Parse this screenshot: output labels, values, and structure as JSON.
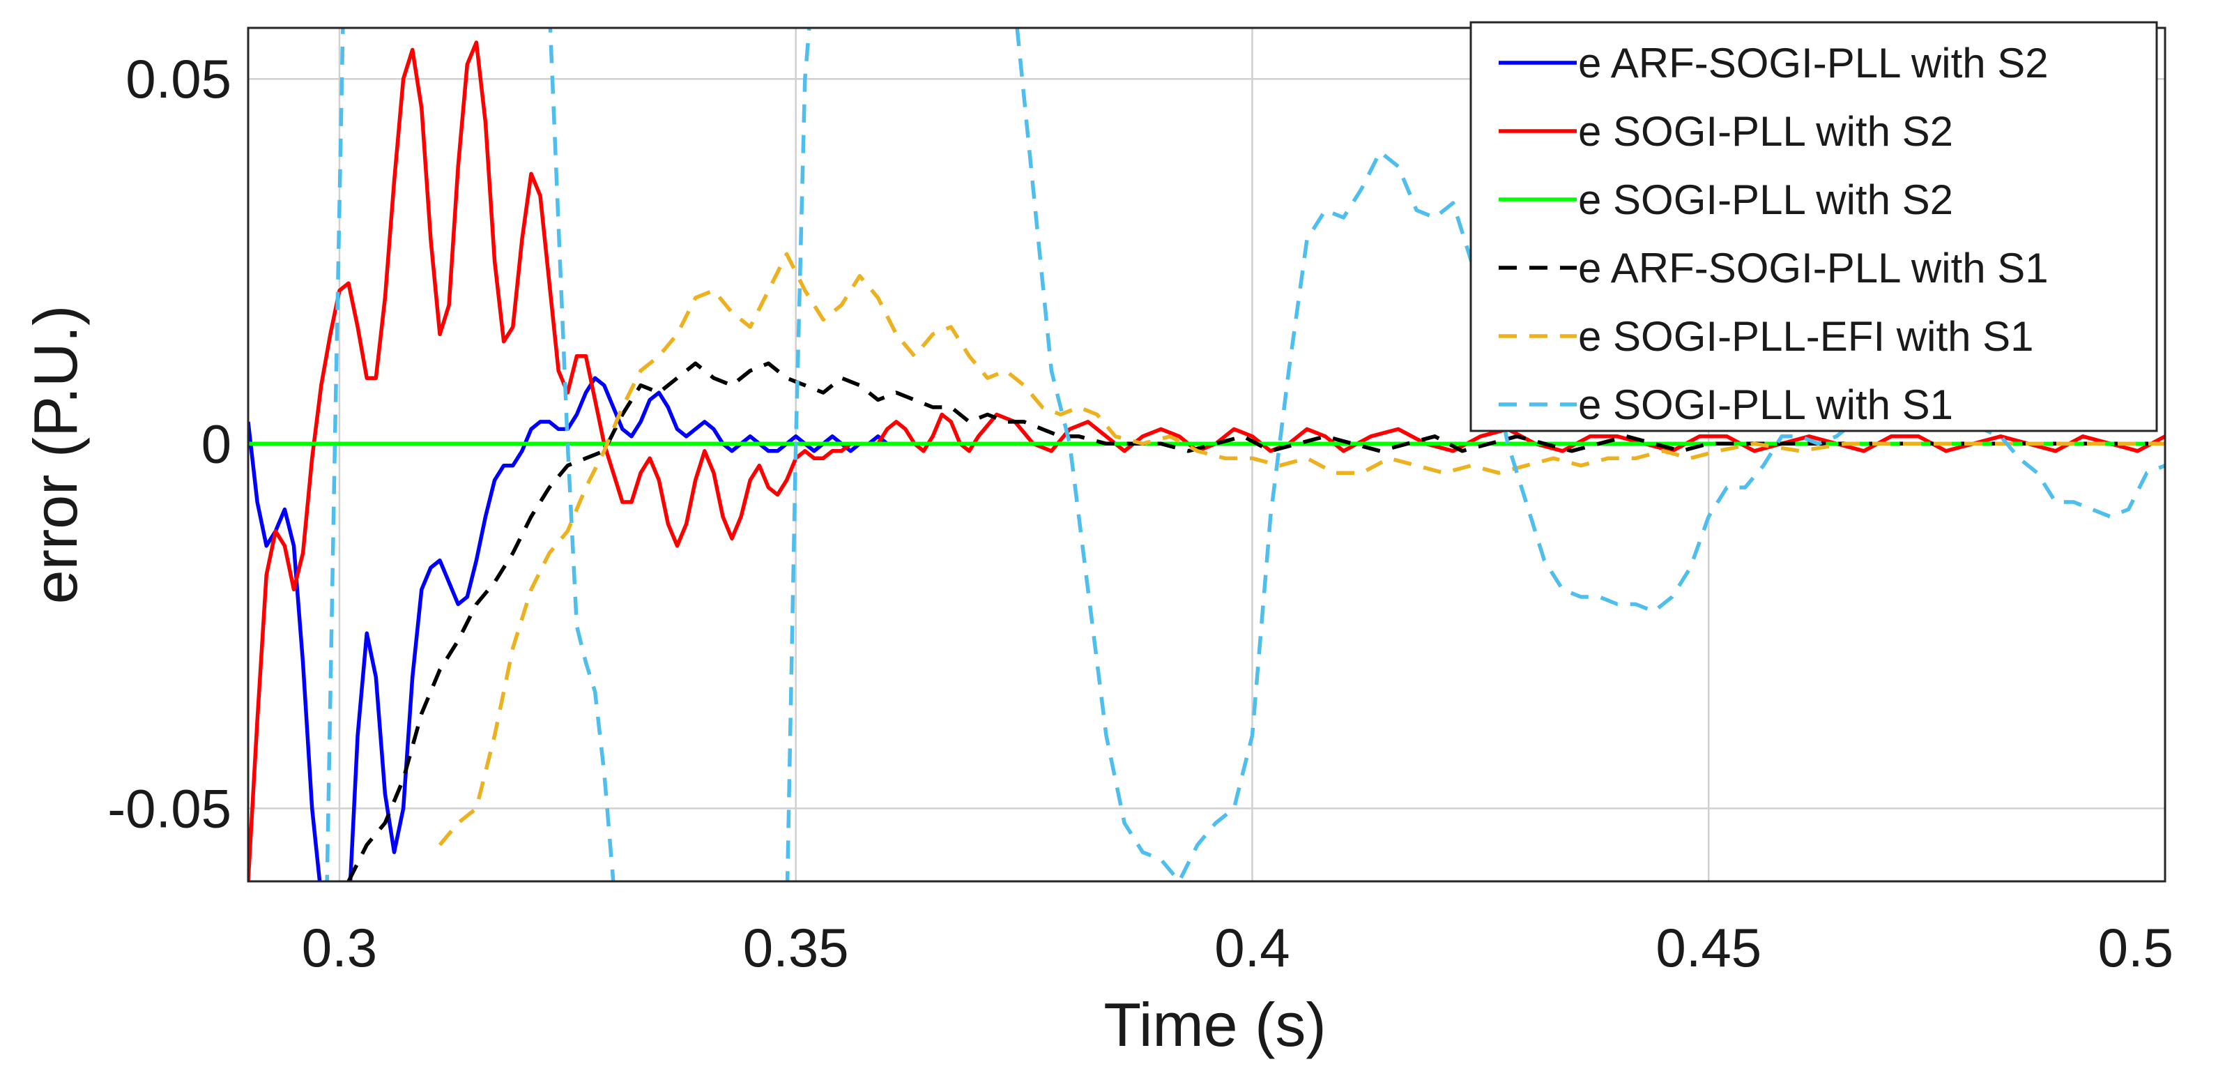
{
  "chart_data": {
    "type": "line",
    "xlabel": "Time (s)",
    "ylabel": "error (P.U.)",
    "xlim": [
      0.29,
      0.5
    ],
    "ylim": [
      -0.06,
      0.057
    ],
    "xticks": [
      0.3,
      0.35,
      0.4,
      0.45,
      0.5
    ],
    "xtick_labels": [
      "0.3",
      "0.35",
      "0.4",
      "0.45",
      "0.5"
    ],
    "yticks": [
      -0.05,
      0,
      0.05
    ],
    "ytick_labels": [
      "-0.05",
      "0",
      "0.05"
    ],
    "grid": true,
    "legend_position": "top-right",
    "series": [
      {
        "name": "e ARF-SOGI-PLL with S2",
        "color": "#0000ff",
        "dash": "solid",
        "x": [
          0.29,
          0.291,
          0.292,
          0.293,
          0.294,
          0.295,
          0.296,
          0.297,
          0.298,
          0.299,
          0.3,
          0.301,
          0.302,
          0.303,
          0.304,
          0.305,
          0.306,
          0.307,
          0.308,
          0.309,
          0.31,
          0.311,
          0.312,
          0.313,
          0.314,
          0.315,
          0.316,
          0.317,
          0.318,
          0.319,
          0.32,
          0.321,
          0.322,
          0.323,
          0.324,
          0.325,
          0.326,
          0.327,
          0.328,
          0.329,
          0.33,
          0.331,
          0.332,
          0.333,
          0.334,
          0.335,
          0.336,
          0.337,
          0.338,
          0.339,
          0.34,
          0.341,
          0.342,
          0.343,
          0.344,
          0.345,
          0.346,
          0.347,
          0.348,
          0.349,
          0.35,
          0.351,
          0.352,
          0.353,
          0.354,
          0.355,
          0.356,
          0.357,
          0.358,
          0.359,
          0.36,
          0.362,
          0.364,
          0.366,
          0.368,
          0.37,
          0.372,
          0.374,
          0.376,
          0.378,
          0.38,
          0.383,
          0.386,
          0.389,
          0.392,
          0.395,
          0.398,
          0.401,
          0.404,
          0.407,
          0.41,
          0.413,
          0.416,
          0.419,
          0.422,
          0.425,
          0.428,
          0.431,
          0.434,
          0.437,
          0.44,
          0.443,
          0.446,
          0.449,
          0.452,
          0.455,
          0.458,
          0.461,
          0.464,
          0.467,
          0.47,
          0.473,
          0.476,
          0.479,
          0.482,
          0.485,
          0.488,
          0.491,
          0.494,
          0.497,
          0.5
        ],
        "y": [
          0.003,
          -0.008,
          -0.014,
          -0.012,
          -0.009,
          -0.014,
          -0.03,
          -0.05,
          -0.062,
          -0.07,
          -0.072,
          -0.065,
          -0.04,
          -0.026,
          -0.032,
          -0.048,
          -0.056,
          -0.05,
          -0.032,
          -0.02,
          -0.017,
          -0.016,
          -0.019,
          -0.022,
          -0.021,
          -0.016,
          -0.01,
          -0.005,
          -0.003,
          -0.003,
          -0.001,
          0.002,
          0.003,
          0.003,
          0.002,
          0.002,
          0.004,
          0.007,
          0.009,
          0.008,
          0.005,
          0.002,
          0.001,
          0.003,
          0.006,
          0.007,
          0.005,
          0.002,
          0.001,
          0.002,
          0.003,
          0.002,
          0.0,
          -0.001,
          0.0,
          0.001,
          0.0,
          -0.001,
          -0.001,
          0.0,
          0.001,
          0.0,
          -0.001,
          0.0,
          0.001,
          0.0,
          -0.001,
          0.0,
          0.0,
          0.001,
          0.0,
          0.0,
          0.0,
          0.0,
          0.0,
          0.0,
          0.0,
          0.0,
          0.0,
          0.0,
          0.0,
          0.0,
          0.0,
          0.0,
          0.0,
          0.0,
          0.0,
          0.0,
          0.0,
          0.0,
          0.0,
          0.0,
          0.0,
          0.0,
          0.0,
          0.0,
          0.0,
          0.0,
          0.0,
          0.0,
          0.0,
          0.0,
          0.0,
          0.0,
          0.0,
          0.0,
          0.0,
          0.0,
          0.0,
          0.0,
          0.0,
          0.0,
          0.0,
          0.0,
          0.0,
          0.0,
          0.0,
          0.0,
          0.0,
          0.0,
          0.0
        ]
      },
      {
        "name": "e SOGI-PLL with  S2",
        "color": "#ff0000",
        "dash": "solid",
        "x": [
          0.29,
          0.291,
          0.292,
          0.293,
          0.294,
          0.295,
          0.296,
          0.297,
          0.298,
          0.299,
          0.3,
          0.301,
          0.302,
          0.303,
          0.304,
          0.305,
          0.306,
          0.307,
          0.308,
          0.309,
          0.31,
          0.311,
          0.312,
          0.313,
          0.314,
          0.315,
          0.316,
          0.317,
          0.318,
          0.319,
          0.32,
          0.321,
          0.322,
          0.323,
          0.324,
          0.325,
          0.326,
          0.327,
          0.328,
          0.329,
          0.33,
          0.331,
          0.332,
          0.333,
          0.334,
          0.335,
          0.336,
          0.337,
          0.338,
          0.339,
          0.34,
          0.341,
          0.342,
          0.343,
          0.344,
          0.345,
          0.346,
          0.347,
          0.348,
          0.349,
          0.35,
          0.351,
          0.352,
          0.353,
          0.354,
          0.355,
          0.356,
          0.357,
          0.358,
          0.359,
          0.36,
          0.361,
          0.362,
          0.363,
          0.364,
          0.365,
          0.366,
          0.367,
          0.368,
          0.369,
          0.37,
          0.372,
          0.374,
          0.376,
          0.378,
          0.38,
          0.382,
          0.384,
          0.386,
          0.388,
          0.39,
          0.392,
          0.394,
          0.396,
          0.398,
          0.4,
          0.402,
          0.404,
          0.406,
          0.408,
          0.41,
          0.413,
          0.416,
          0.419,
          0.422,
          0.425,
          0.428,
          0.431,
          0.434,
          0.437,
          0.44,
          0.443,
          0.446,
          0.449,
          0.452,
          0.455,
          0.458,
          0.461,
          0.464,
          0.467,
          0.47,
          0.473,
          0.476,
          0.479,
          0.482,
          0.485,
          0.488,
          0.491,
          0.494,
          0.497,
          0.5
        ],
        "y": [
          -0.06,
          -0.038,
          -0.018,
          -0.012,
          -0.014,
          -0.02,
          -0.015,
          -0.002,
          0.008,
          0.015,
          0.021,
          0.022,
          0.016,
          0.009,
          0.009,
          0.02,
          0.036,
          0.05,
          0.054,
          0.046,
          0.028,
          0.015,
          0.019,
          0.038,
          0.052,
          0.055,
          0.044,
          0.025,
          0.014,
          0.016,
          0.028,
          0.037,
          0.034,
          0.022,
          0.01,
          0.007,
          0.012,
          0.012,
          0.006,
          0.0,
          -0.004,
          -0.008,
          -0.008,
          -0.004,
          -0.002,
          -0.005,
          -0.011,
          -0.014,
          -0.011,
          -0.005,
          -0.001,
          -0.004,
          -0.01,
          -0.013,
          -0.01,
          -0.005,
          -0.003,
          -0.006,
          -0.007,
          -0.005,
          -0.002,
          -0.001,
          -0.002,
          -0.002,
          -0.001,
          -0.001,
          0.0,
          0.0,
          0.0,
          0.0,
          0.002,
          0.003,
          0.002,
          0.0,
          -0.001,
          0.001,
          0.004,
          0.003,
          0.0,
          -0.001,
          0.001,
          0.004,
          0.003,
          0.0,
          -0.001,
          0.002,
          0.003,
          0.001,
          -0.001,
          0.001,
          0.002,
          0.001,
          -0.001,
          0.0,
          0.002,
          0.001,
          -0.001,
          0.0,
          0.002,
          0.001,
          -0.001,
          0.001,
          0.002,
          0.0,
          -0.001,
          0.001,
          0.002,
          0.0,
          -0.001,
          0.001,
          0.001,
          0.0,
          -0.001,
          0.001,
          0.001,
          -0.001,
          0.0,
          0.001,
          0.0,
          -0.001,
          0.001,
          0.001,
          -0.001,
          0.0,
          0.001,
          0.0,
          -0.001,
          0.001,
          0.0,
          -0.001,
          0.001
        ]
      },
      {
        "name": "e SOGI-PLL with S2",
        "color": "#00ff00",
        "dash": "solid",
        "x": [
          0.29,
          0.5
        ],
        "y": [
          0,
          0
        ]
      },
      {
        "name": "e ARF-SOGI-PLL with S1",
        "color": "#000000",
        "dash": "dashed",
        "x": [
          0.301,
          0.303,
          0.305,
          0.307,
          0.309,
          0.311,
          0.313,
          0.315,
          0.317,
          0.319,
          0.321,
          0.323,
          0.325,
          0.327,
          0.329,
          0.331,
          0.333,
          0.335,
          0.337,
          0.339,
          0.341,
          0.343,
          0.345,
          0.347,
          0.349,
          0.351,
          0.353,
          0.355,
          0.357,
          0.359,
          0.361,
          0.363,
          0.365,
          0.367,
          0.369,
          0.371,
          0.373,
          0.375,
          0.377,
          0.379,
          0.381,
          0.384,
          0.387,
          0.39,
          0.393,
          0.396,
          0.399,
          0.402,
          0.405,
          0.408,
          0.411,
          0.414,
          0.417,
          0.42,
          0.423,
          0.426,
          0.429,
          0.432,
          0.435,
          0.438,
          0.441,
          0.444,
          0.447,
          0.45,
          0.455,
          0.46,
          0.465,
          0.47,
          0.475,
          0.48,
          0.485,
          0.49,
          0.495,
          0.5
        ],
        "y": [
          -0.06,
          -0.055,
          -0.052,
          -0.046,
          -0.037,
          -0.031,
          -0.027,
          -0.022,
          -0.019,
          -0.015,
          -0.01,
          -0.006,
          -0.003,
          -0.002,
          -0.001,
          0.004,
          0.008,
          0.007,
          0.009,
          0.011,
          0.009,
          0.008,
          0.01,
          0.011,
          0.009,
          0.008,
          0.007,
          0.009,
          0.008,
          0.006,
          0.007,
          0.006,
          0.005,
          0.005,
          0.003,
          0.004,
          0.003,
          0.003,
          0.002,
          0.001,
          0.001,
          0.0,
          0.0,
          0.0,
          -0.001,
          0.0,
          0.001,
          -0.001,
          0.0,
          0.001,
          0.0,
          -0.001,
          0.0,
          0.001,
          -0.001,
          0.0,
          0.001,
          0.0,
          -0.001,
          0.0,
          0.001,
          0.0,
          -0.001,
          0.0,
          0.0,
          0.0,
          0.0,
          0.0,
          0.0,
          0.0,
          0.0,
          0.0,
          0.0,
          0.0
        ]
      },
      {
        "name": "e SOGI-PLL-EFI with S1",
        "color": "#edb120",
        "dash": "dashed",
        "x": [
          0.311,
          0.313,
          0.315,
          0.317,
          0.319,
          0.321,
          0.323,
          0.325,
          0.327,
          0.329,
          0.331,
          0.333,
          0.335,
          0.337,
          0.339,
          0.341,
          0.343,
          0.345,
          0.347,
          0.349,
          0.351,
          0.353,
          0.355,
          0.357,
          0.359,
          0.361,
          0.363,
          0.365,
          0.367,
          0.369,
          0.371,
          0.373,
          0.375,
          0.377,
          0.379,
          0.381,
          0.383,
          0.385,
          0.388,
          0.391,
          0.394,
          0.397,
          0.4,
          0.403,
          0.406,
          0.409,
          0.412,
          0.415,
          0.418,
          0.421,
          0.424,
          0.427,
          0.43,
          0.433,
          0.436,
          0.439,
          0.442,
          0.445,
          0.448,
          0.451,
          0.455,
          0.46,
          0.465,
          0.47,
          0.475,
          0.48,
          0.485,
          0.49,
          0.495,
          0.5
        ],
        "y": [
          -0.055,
          -0.052,
          -0.05,
          -0.04,
          -0.028,
          -0.02,
          -0.015,
          -0.012,
          -0.006,
          -0.001,
          0.005,
          0.01,
          0.012,
          0.015,
          0.02,
          0.021,
          0.018,
          0.016,
          0.021,
          0.026,
          0.021,
          0.017,
          0.019,
          0.023,
          0.02,
          0.015,
          0.012,
          0.015,
          0.016,
          0.012,
          0.009,
          0.01,
          0.008,
          0.005,
          0.004,
          0.005,
          0.004,
          0.001,
          0.0,
          0.001,
          -0.001,
          -0.002,
          -0.002,
          -0.003,
          -0.002,
          -0.004,
          -0.004,
          -0.002,
          -0.003,
          -0.004,
          -0.003,
          -0.004,
          -0.003,
          -0.002,
          -0.003,
          -0.002,
          -0.002,
          -0.001,
          -0.002,
          -0.001,
          0.0,
          -0.001,
          0.0,
          0.0,
          0.0,
          0.0,
          0.0,
          0.0,
          0.0,
          0.0
        ]
      },
      {
        "name": "e SOGI-PLL with S1",
        "color": "#4dbeee",
        "dash": "dashed",
        "x": [
          0.2985,
          0.2995,
          0.3005,
          0.301,
          0.302,
          0.304,
          0.306,
          0.308,
          0.31,
          0.312,
          0.314,
          0.316,
          0.318,
          0.32,
          0.321,
          0.322,
          0.323,
          0.324,
          0.325,
          0.326,
          0.327,
          0.328,
          0.329,
          0.33,
          0.331,
          0.332,
          0.334,
          0.336,
          0.338,
          0.34,
          0.342,
          0.344,
          0.346,
          0.348,
          0.349,
          0.35,
          0.351,
          0.352,
          0.353,
          0.354,
          0.355,
          0.356,
          0.357,
          0.358,
          0.36,
          0.362,
          0.364,
          0.366,
          0.368,
          0.37,
          0.372,
          0.374,
          0.376,
          0.378,
          0.38,
          0.382,
          0.384,
          0.386,
          0.388,
          0.39,
          0.392,
          0.394,
          0.396,
          0.398,
          0.4,
          0.402,
          0.404,
          0.406,
          0.408,
          0.41,
          0.412,
          0.414,
          0.416,
          0.418,
          0.42,
          0.422,
          0.424,
          0.426,
          0.428,
          0.43,
          0.432,
          0.434,
          0.436,
          0.438,
          0.44,
          0.442,
          0.444,
          0.446,
          0.448,
          0.45,
          0.452,
          0.454,
          0.456,
          0.458,
          0.46,
          0.462,
          0.464,
          0.466,
          0.468,
          0.47,
          0.472,
          0.474,
          0.476,
          0.478,
          0.48,
          0.482,
          0.484,
          0.486,
          0.488,
          0.49,
          0.492,
          0.494,
          0.496,
          0.498,
          0.5
        ],
        "y": [
          -0.07,
          0.0,
          0.065,
          0.065,
          0.065,
          0.065,
          0.065,
          0.065,
          0.065,
          0.065,
          0.065,
          0.065,
          0.065,
          0.065,
          0.065,
          0.065,
          0.06,
          0.03,
          0.0,
          -0.025,
          -0.03,
          -0.034,
          -0.045,
          -0.06,
          -0.07,
          -0.07,
          -0.07,
          -0.07,
          -0.07,
          -0.07,
          -0.07,
          -0.07,
          -0.07,
          -0.07,
          -0.065,
          0.0,
          0.05,
          0.065,
          0.065,
          0.065,
          0.065,
          0.065,
          0.065,
          0.065,
          0.065,
          0.065,
          0.065,
          0.065,
          0.065,
          0.065,
          0.065,
          0.06,
          0.035,
          0.01,
          0.0,
          -0.02,
          -0.04,
          -0.052,
          -0.056,
          -0.057,
          -0.06,
          -0.055,
          -0.052,
          -0.05,
          -0.04,
          -0.01,
          0.01,
          0.028,
          0.032,
          0.031,
          0.035,
          0.04,
          0.038,
          0.032,
          0.031,
          0.033,
          0.025,
          0.012,
          0.0,
          -0.008,
          -0.016,
          -0.02,
          -0.021,
          -0.021,
          -0.022,
          -0.022,
          -0.023,
          -0.021,
          -0.017,
          -0.01,
          -0.006,
          -0.006,
          -0.003,
          0.001,
          0.001,
          0.0,
          0.001,
          0.003,
          0.002,
          0.002,
          0.003,
          0.002,
          0.002,
          0.003,
          0.002,
          0.001,
          -0.002,
          -0.004,
          -0.008,
          -0.008,
          -0.009,
          -0.01,
          -0.009,
          -0.004,
          -0.003
        ]
      }
    ]
  }
}
